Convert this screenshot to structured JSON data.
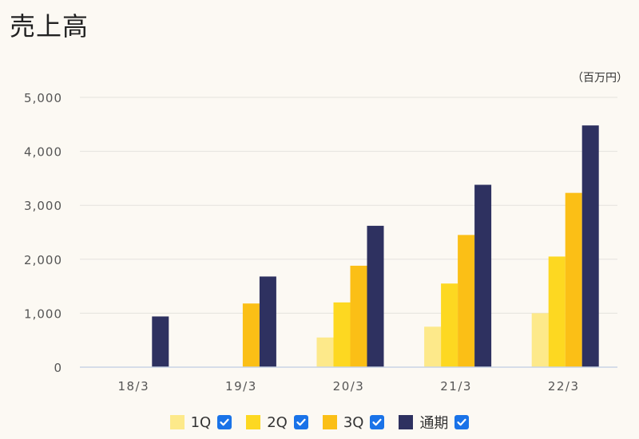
{
  "title": "売上高",
  "unit": "（百万円）",
  "colors": {
    "series": [
      "#fde98a",
      "#fdd821",
      "#fbbf16",
      "#2e3160"
    ],
    "grid": "#e4e2de",
    "axis": "#c9d4e6",
    "tick": "#555555",
    "checkbox": "#1a73e8"
  },
  "legend": {
    "items": [
      {
        "label": "1Q",
        "checked": true
      },
      {
        "label": "2Q",
        "checked": true
      },
      {
        "label": "3Q",
        "checked": true
      },
      {
        "label": "通期",
        "checked": true
      }
    ]
  },
  "chart_data": {
    "type": "bar",
    "categories": [
      "18/3",
      "19/3",
      "20/3",
      "21/3",
      "22/3"
    ],
    "series": [
      {
        "name": "1Q",
        "values": [
          null,
          null,
          550,
          750,
          1000
        ]
      },
      {
        "name": "2Q",
        "values": [
          null,
          null,
          1200,
          1550,
          2050
        ]
      },
      {
        "name": "3Q",
        "values": [
          null,
          1180,
          1880,
          2450,
          3230
        ]
      },
      {
        "name": "通期",
        "values": [
          940,
          1680,
          2620,
          3380,
          4480
        ]
      }
    ],
    "yticks": [
      "0",
      "1,000",
      "2,000",
      "3,000",
      "4,000",
      "5,000"
    ],
    "ylim": [
      0,
      5000
    ],
    "grid": true,
    "legend_position": "bottom"
  }
}
